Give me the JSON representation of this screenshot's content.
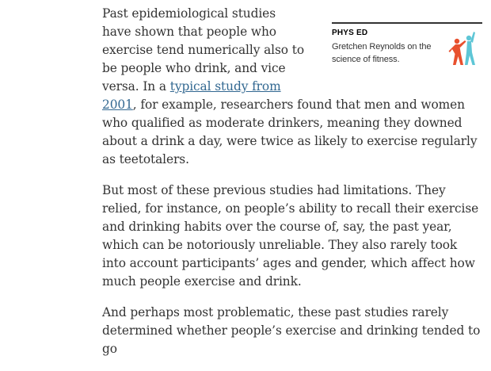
{
  "sidebar_promo": {
    "kicker": "PHYS ED",
    "description": "Gretchen Reynolds on the science of fitness.",
    "icon": "stretching-figures-icon",
    "colors": {
      "figure_left": "#e8502e",
      "figure_right": "#5ec6d6"
    }
  },
  "article": {
    "p1_before_link": "Past epidemiological studies have shown that people who exercise tend numerically also to be people who drink, and vice versa. In a ",
    "p1_link": "typical study from 2001",
    "p1_after_link": ", for example, researchers found that men and women who qualified as moderate drinkers, meaning they downed about a drink a day, were twice as likely to exercise regularly as teetotalers.",
    "p2": "But most of these previous studies had limitations. They relied, for instance, on people’s ability to recall their exercise and drinking habits over the course of, say, the past year, which can be notoriously unreliable. They also rarely took into account participants’ ages and gender, which affect how much people exercise and drink.",
    "p3": "And perhaps most problematic, these past studies rarely determined whether people’s exercise and drinking tended to go"
  },
  "colors": {
    "link": "#326891",
    "body_text": "#333333"
  }
}
